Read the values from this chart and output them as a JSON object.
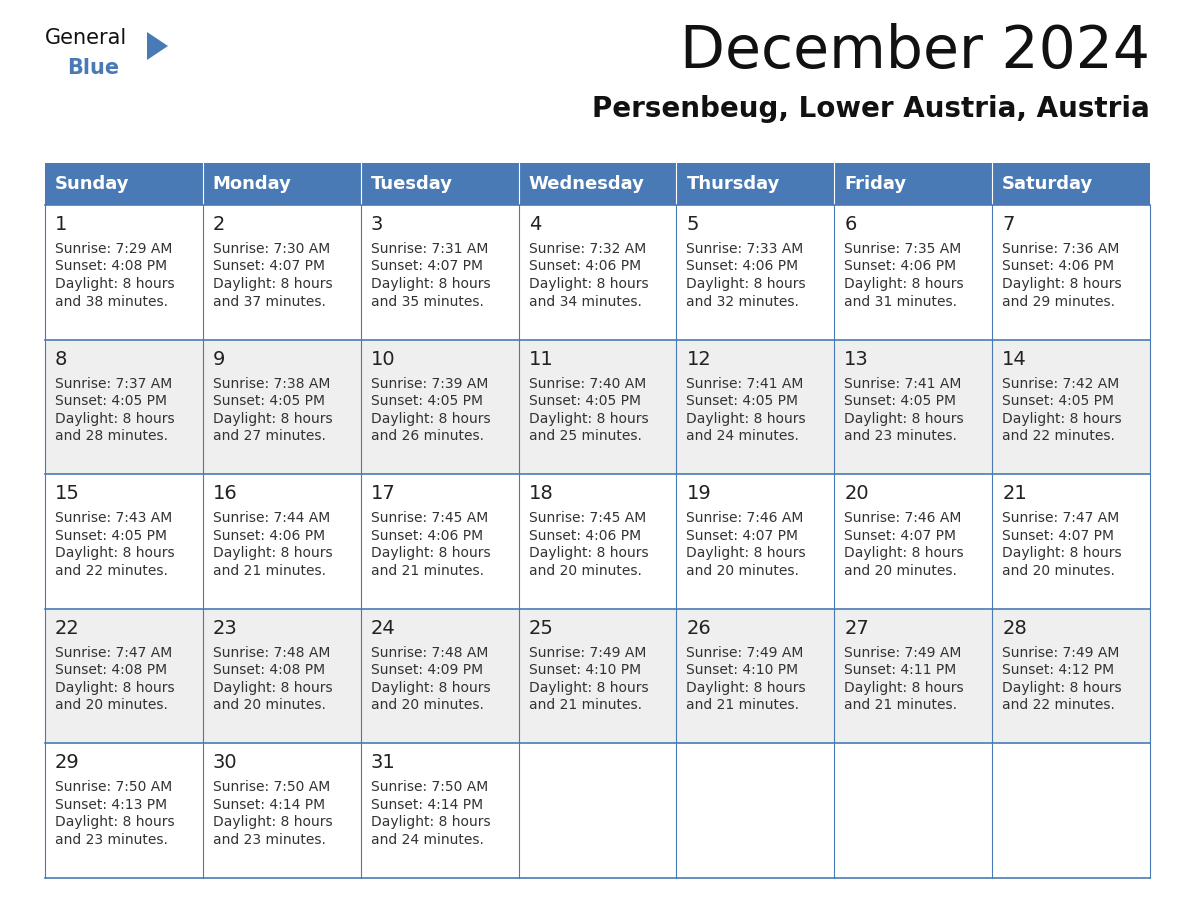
{
  "title": "December 2024",
  "subtitle": "Persenbeug, Lower Austria, Austria",
  "header_color": "#4a7ab5",
  "header_text_color": "#ffffff",
  "day_names": [
    "Sunday",
    "Monday",
    "Tuesday",
    "Wednesday",
    "Thursday",
    "Friday",
    "Saturday"
  ],
  "background_color": "#ffffff",
  "cell_even_color": "#ffffff",
  "cell_odd_color": "#efefef",
  "grid_color": "#4a7ab5",
  "text_color": "#333333",
  "day_num_color": "#222222",
  "days": [
    {
      "day": 1,
      "col": 0,
      "row": 0,
      "sunrise": "7:29 AM",
      "sunset": "4:08 PM",
      "daylight": "8 hours and 38 minutes."
    },
    {
      "day": 2,
      "col": 1,
      "row": 0,
      "sunrise": "7:30 AM",
      "sunset": "4:07 PM",
      "daylight": "8 hours and 37 minutes."
    },
    {
      "day": 3,
      "col": 2,
      "row": 0,
      "sunrise": "7:31 AM",
      "sunset": "4:07 PM",
      "daylight": "8 hours and 35 minutes."
    },
    {
      "day": 4,
      "col": 3,
      "row": 0,
      "sunrise": "7:32 AM",
      "sunset": "4:06 PM",
      "daylight": "8 hours and 34 minutes."
    },
    {
      "day": 5,
      "col": 4,
      "row": 0,
      "sunrise": "7:33 AM",
      "sunset": "4:06 PM",
      "daylight": "8 hours and 32 minutes."
    },
    {
      "day": 6,
      "col": 5,
      "row": 0,
      "sunrise": "7:35 AM",
      "sunset": "4:06 PM",
      "daylight": "8 hours and 31 minutes."
    },
    {
      "day": 7,
      "col": 6,
      "row": 0,
      "sunrise": "7:36 AM",
      "sunset": "4:06 PM",
      "daylight": "8 hours and 29 minutes."
    },
    {
      "day": 8,
      "col": 0,
      "row": 1,
      "sunrise": "7:37 AM",
      "sunset": "4:05 PM",
      "daylight": "8 hours and 28 minutes."
    },
    {
      "day": 9,
      "col": 1,
      "row": 1,
      "sunrise": "7:38 AM",
      "sunset": "4:05 PM",
      "daylight": "8 hours and 27 minutes."
    },
    {
      "day": 10,
      "col": 2,
      "row": 1,
      "sunrise": "7:39 AM",
      "sunset": "4:05 PM",
      "daylight": "8 hours and 26 minutes."
    },
    {
      "day": 11,
      "col": 3,
      "row": 1,
      "sunrise": "7:40 AM",
      "sunset": "4:05 PM",
      "daylight": "8 hours and 25 minutes."
    },
    {
      "day": 12,
      "col": 4,
      "row": 1,
      "sunrise": "7:41 AM",
      "sunset": "4:05 PM",
      "daylight": "8 hours and 24 minutes."
    },
    {
      "day": 13,
      "col": 5,
      "row": 1,
      "sunrise": "7:41 AM",
      "sunset": "4:05 PM",
      "daylight": "8 hours and 23 minutes."
    },
    {
      "day": 14,
      "col": 6,
      "row": 1,
      "sunrise": "7:42 AM",
      "sunset": "4:05 PM",
      "daylight": "8 hours and 22 minutes."
    },
    {
      "day": 15,
      "col": 0,
      "row": 2,
      "sunrise": "7:43 AM",
      "sunset": "4:05 PM",
      "daylight": "8 hours and 22 minutes."
    },
    {
      "day": 16,
      "col": 1,
      "row": 2,
      "sunrise": "7:44 AM",
      "sunset": "4:06 PM",
      "daylight": "8 hours and 21 minutes."
    },
    {
      "day": 17,
      "col": 2,
      "row": 2,
      "sunrise": "7:45 AM",
      "sunset": "4:06 PM",
      "daylight": "8 hours and 21 minutes."
    },
    {
      "day": 18,
      "col": 3,
      "row": 2,
      "sunrise": "7:45 AM",
      "sunset": "4:06 PM",
      "daylight": "8 hours and 20 minutes."
    },
    {
      "day": 19,
      "col": 4,
      "row": 2,
      "sunrise": "7:46 AM",
      "sunset": "4:07 PM",
      "daylight": "8 hours and 20 minutes."
    },
    {
      "day": 20,
      "col": 5,
      "row": 2,
      "sunrise": "7:46 AM",
      "sunset": "4:07 PM",
      "daylight": "8 hours and 20 minutes."
    },
    {
      "day": 21,
      "col": 6,
      "row": 2,
      "sunrise": "7:47 AM",
      "sunset": "4:07 PM",
      "daylight": "8 hours and 20 minutes."
    },
    {
      "day": 22,
      "col": 0,
      "row": 3,
      "sunrise": "7:47 AM",
      "sunset": "4:08 PM",
      "daylight": "8 hours and 20 minutes."
    },
    {
      "day": 23,
      "col": 1,
      "row": 3,
      "sunrise": "7:48 AM",
      "sunset": "4:08 PM",
      "daylight": "8 hours and 20 minutes."
    },
    {
      "day": 24,
      "col": 2,
      "row": 3,
      "sunrise": "7:48 AM",
      "sunset": "4:09 PM",
      "daylight": "8 hours and 20 minutes."
    },
    {
      "day": 25,
      "col": 3,
      "row": 3,
      "sunrise": "7:49 AM",
      "sunset": "4:10 PM",
      "daylight": "8 hours and 21 minutes."
    },
    {
      "day": 26,
      "col": 4,
      "row": 3,
      "sunrise": "7:49 AM",
      "sunset": "4:10 PM",
      "daylight": "8 hours and 21 minutes."
    },
    {
      "day": 27,
      "col": 5,
      "row": 3,
      "sunrise": "7:49 AM",
      "sunset": "4:11 PM",
      "daylight": "8 hours and 21 minutes."
    },
    {
      "day": 28,
      "col": 6,
      "row": 3,
      "sunrise": "7:49 AM",
      "sunset": "4:12 PM",
      "daylight": "8 hours and 22 minutes."
    },
    {
      "day": 29,
      "col": 0,
      "row": 4,
      "sunrise": "7:50 AM",
      "sunset": "4:13 PM",
      "daylight": "8 hours and 23 minutes."
    },
    {
      "day": 30,
      "col": 1,
      "row": 4,
      "sunrise": "7:50 AM",
      "sunset": "4:14 PM",
      "daylight": "8 hours and 23 minutes."
    },
    {
      "day": 31,
      "col": 2,
      "row": 4,
      "sunrise": "7:50 AM",
      "sunset": "4:14 PM",
      "daylight": "8 hours and 24 minutes."
    }
  ],
  "logo_triangle_color": "#4a7ab5",
  "title_fontsize": 42,
  "subtitle_fontsize": 20,
  "header_fontsize": 13,
  "daynum_fontsize": 14,
  "cell_fontsize": 10
}
